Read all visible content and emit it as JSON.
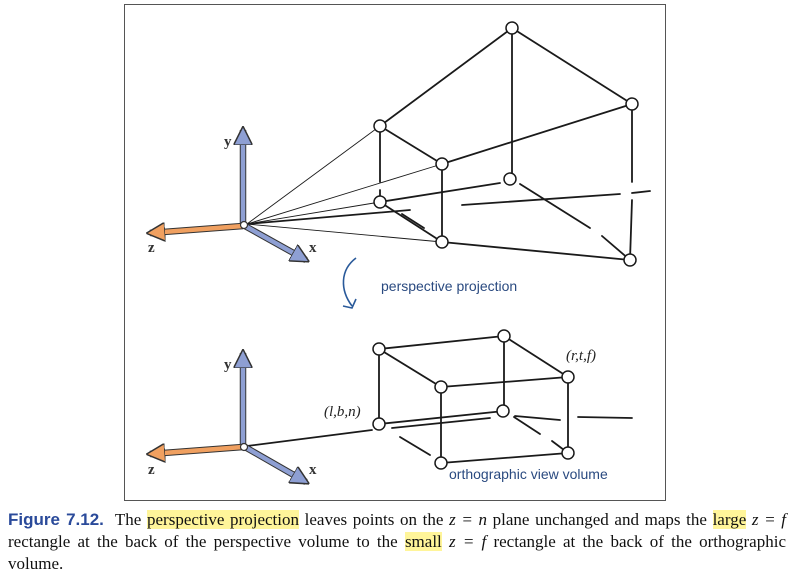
{
  "diagram": {
    "top_axes": {
      "y": "y",
      "z": "z",
      "x": "x"
    },
    "bottom_axes": {
      "y": "y",
      "z": "z",
      "x": "x"
    },
    "transition_label": "perspective projection",
    "near_corner_label": "(l,b,n)",
    "far_corner_label": "(r,t,f)",
    "volume_label": "orthographic view volume",
    "colors": {
      "y_axis": "#8e9fd3",
      "x_axis": "#8e9fd3",
      "z_axis": "#f0a060",
      "annotation": "#2a4a80",
      "highlight": "#fff59a",
      "figure_label": "#2a4a9a"
    }
  },
  "caption": {
    "figure_label": "Figure 7.12.",
    "seg1": "The",
    "hl1": "perspective projection",
    "seg2": "leaves points on the",
    "eq1": "z = n",
    "seg3": "plane unchanged and maps the",
    "hl2": "large",
    "eq2": "z = f",
    "seg4": "rectangle at the back of the perspective volume to the",
    "hl3": "small",
    "eq3": "z = f",
    "seg5": "rectangle at the back of the orthographic volume."
  }
}
